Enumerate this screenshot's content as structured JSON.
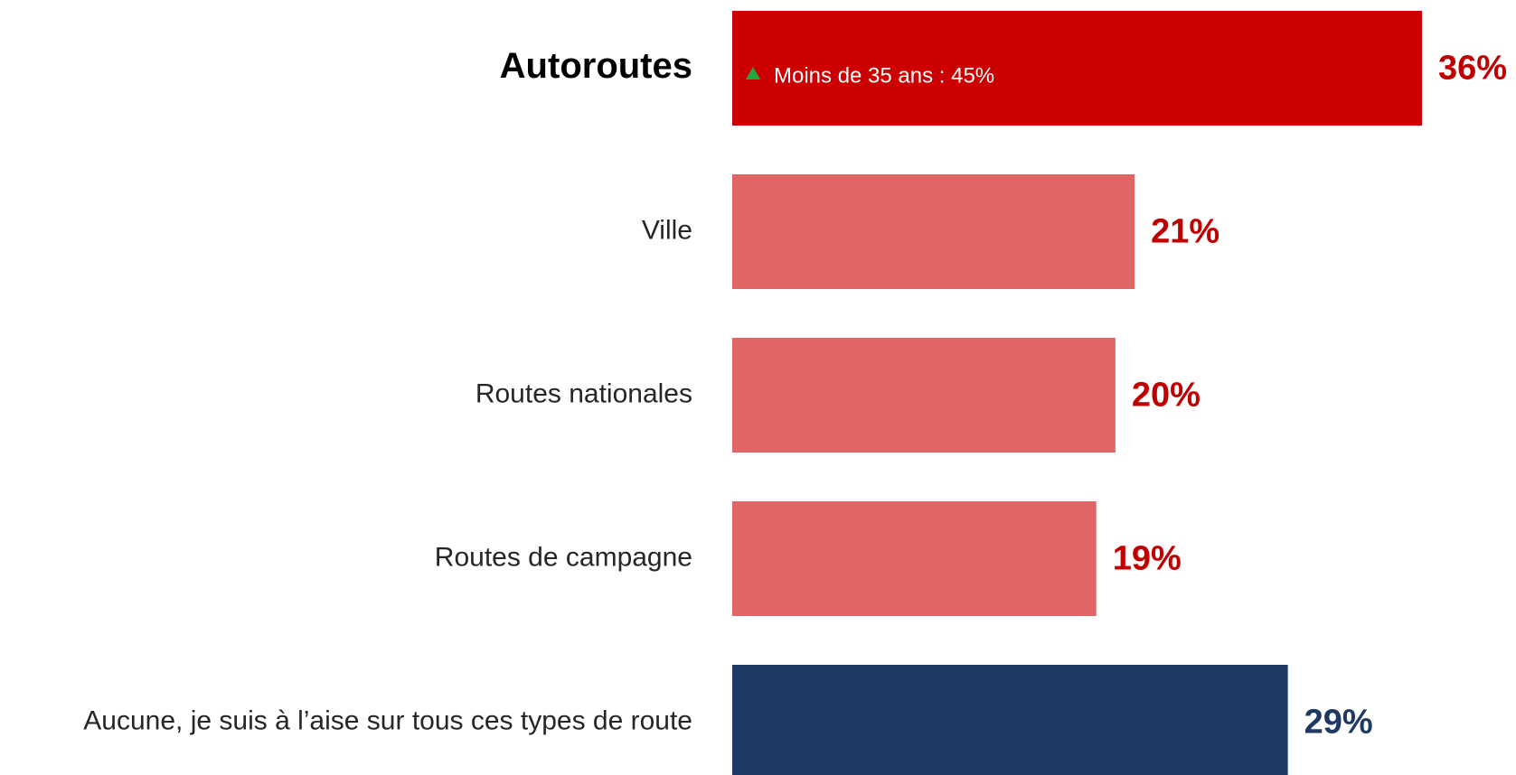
{
  "chart_data": {
    "type": "bar",
    "orientation": "horizontal",
    "categories": [
      "Autoroutes",
      "Ville",
      "Routes nationales",
      "Routes de campagne",
      "Aucune, je suis à l’aise sur tous ces types de route"
    ],
    "values": [
      36,
      21,
      20,
      19,
      29
    ],
    "value_labels": [
      "36%",
      "21%",
      "20%",
      "19%",
      "29%"
    ],
    "colors": [
      "#cc0000",
      "#e06666",
      "#e06666",
      "#e06666",
      "#203864"
    ],
    "label_colors": [
      "#c00000",
      "#c00000",
      "#c00000",
      "#c00000",
      "#203864"
    ],
    "annotation": "Moins de 35 ans : 45%",
    "xlim": [
      0,
      36
    ]
  }
}
